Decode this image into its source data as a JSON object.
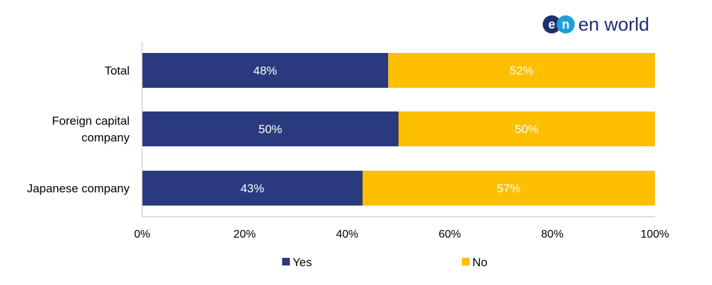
{
  "logo": {
    "mark_left": "e",
    "mark_right": "n",
    "wordmark": "en world",
    "colors": {
      "navy": "#1f2e6e",
      "blue": "#1e9fd8"
    }
  },
  "chart_data": {
    "type": "bar",
    "orientation": "horizontal",
    "stacked": true,
    "categories": [
      [
        "Total"
      ],
      [
        "Foreign capital",
        "company"
      ],
      [
        "Japanese company"
      ]
    ],
    "series": [
      {
        "name": "Yes",
        "values": [
          48,
          50,
          43
        ],
        "labels": [
          "48%",
          "50%",
          "43%"
        ],
        "color": "#293a7e"
      },
      {
        "name": "No",
        "values": [
          52,
          50,
          57
        ],
        "labels": [
          "52%",
          "50%",
          "57%"
        ],
        "color": "#fdbf00"
      }
    ],
    "xlim": [
      0,
      100
    ],
    "xticks": [
      0,
      20,
      40,
      60,
      80,
      100
    ],
    "xtick_labels": [
      "0%",
      "20%",
      "40%",
      "60%",
      "80%",
      "100%"
    ],
    "grid": false,
    "legend_position": "bottom",
    "title": "",
    "xlabel": "",
    "ylabel": ""
  }
}
